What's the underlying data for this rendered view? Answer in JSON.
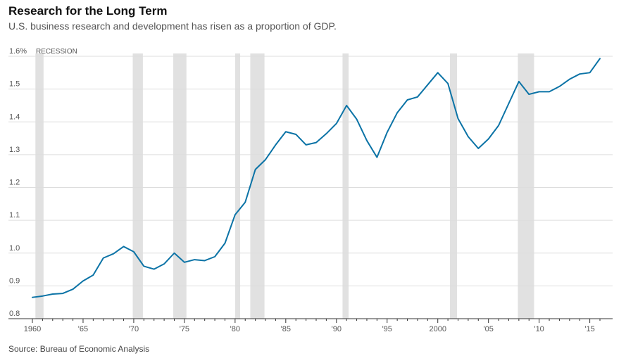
{
  "title": "Research for the Long Term",
  "subtitle": "U.S. business research and development has risen as a proportion of GDP.",
  "source": "Source: Bureau of Economic Analysis",
  "colors": {
    "line": "#0b73a6",
    "recession": "#e1e1e1",
    "grid": "#dddddd",
    "axis": "#333333"
  },
  "chart_data": {
    "type": "line",
    "xlim": [
      1960,
      2016
    ],
    "ylim": [
      0.8,
      1.6
    ],
    "grid": true,
    "y_ticks": [
      0.8,
      0.9,
      1.0,
      1.1,
      1.2,
      1.3,
      1.4,
      1.5,
      1.6
    ],
    "y_tick_labels": [
      "0.8",
      "0.9",
      "1.0",
      "1.1",
      "1.2",
      "1.3",
      "1.4",
      "1.5",
      "1.6%"
    ],
    "x_ticks": [
      1960,
      1965,
      1970,
      1975,
      1980,
      1985,
      1990,
      1995,
      2000,
      2005,
      2010,
      2015
    ],
    "x_tick_labels": [
      "1960",
      "'65",
      "'70",
      "'75",
      "'80",
      "'85",
      "'90",
      "'95",
      "2000",
      "'05",
      "'10",
      "'15"
    ],
    "recession_label": "RECESSION",
    "recessions": [
      [
        1960.3,
        1961.1
      ],
      [
        1969.9,
        1970.9
      ],
      [
        1973.9,
        1975.2
      ],
      [
        1980.0,
        1980.5
      ],
      [
        1981.5,
        1982.9
      ],
      [
        1990.6,
        1991.2
      ],
      [
        2001.2,
        2001.9
      ],
      [
        2007.9,
        2009.5
      ]
    ],
    "series": [
      {
        "x": [
          1960,
          1961,
          1962,
          1963,
          1964,
          1965,
          1966,
          1967,
          1968,
          1969,
          1970,
          1971,
          1972,
          1973,
          1974,
          1975,
          1976,
          1977,
          1978,
          1979,
          1980,
          1981,
          1982,
          1983,
          1984,
          1985,
          1986,
          1987,
          1988,
          1989,
          1990,
          1991,
          1992,
          1993,
          1994,
          1995,
          1996,
          1997,
          1998,
          1999,
          2000,
          2001,
          2002,
          2003,
          2004,
          2005,
          2006,
          2007,
          2008,
          2009,
          2010,
          2011,
          2012,
          2013,
          2014,
          2015,
          2016
        ],
        "values": [
          0.865,
          0.869,
          0.875,
          0.877,
          0.89,
          0.915,
          0.933,
          0.985,
          0.998,
          1.02,
          1.004,
          0.96,
          0.951,
          0.967,
          1.0,
          0.972,
          0.98,
          0.977,
          0.989,
          1.03,
          1.117,
          1.155,
          1.255,
          1.285,
          1.33,
          1.37,
          1.362,
          1.33,
          1.337,
          1.364,
          1.395,
          1.45,
          1.408,
          1.343,
          1.292,
          1.368,
          1.428,
          1.467,
          1.476,
          1.513,
          1.55,
          1.517,
          1.41,
          1.355,
          1.319,
          1.348,
          1.389,
          1.456,
          1.523,
          1.484,
          1.492,
          1.492,
          1.508,
          1.53,
          1.546,
          1.55,
          1.593
        ]
      }
    ]
  }
}
